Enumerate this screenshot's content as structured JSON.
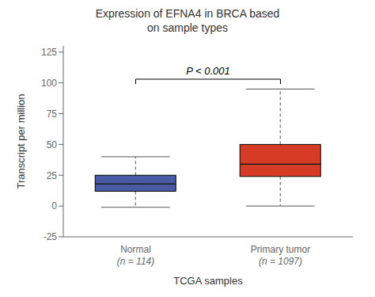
{
  "chart_data": {
    "type": "box",
    "title": "Expression of EFNA4 in BRCA based\non sample types",
    "xlabel": "TCGA samples",
    "ylabel": "Transcript per million",
    "categories": [
      "Normal\n(n = 114)",
      "Primary tumor\n(n = 1097)"
    ],
    "colors": [
      "#4a5ba5",
      "#d63b25"
    ],
    "q1": [
      12,
      24
    ],
    "median": [
      18,
      34
    ],
    "q3": [
      25,
      50
    ],
    "whisker_low": [
      -1,
      0
    ],
    "whisker_high": [
      40,
      95
    ],
    "ylim": [
      -25,
      130
    ],
    "yticks": [
      -25,
      0,
      25,
      50,
      75,
      100,
      125
    ],
    "grid": false,
    "annotations": [
      {
        "text": "P < 0.001",
        "from": "Normal\n(n = 114)",
        "to": "Primary tumor\n(n = 1097)",
        "y": 103
      }
    ]
  }
}
